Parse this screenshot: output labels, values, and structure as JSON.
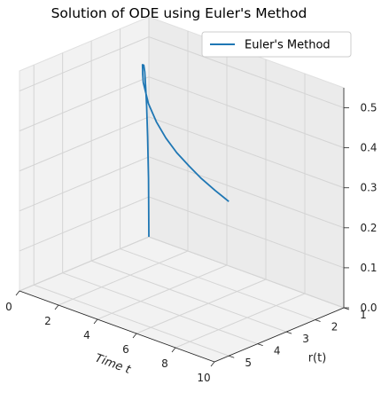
{
  "chart_data": {
    "type": "line",
    "projection": "3d",
    "title": "Solution of ODE using Euler's Method",
    "xlabel": "Time t",
    "ylabel": "r(t)",
    "zlabel": "",
    "xlim": [
      0,
      10
    ],
    "ylim": [
      1,
      5.5
    ],
    "zlim": [
      0,
      0.55
    ],
    "x_ticks": [
      "0",
      "2",
      "4",
      "6",
      "8",
      "10"
    ],
    "y_ticks": [
      "1",
      "2",
      "3",
      "4",
      "5"
    ],
    "z_ticks": [
      "0.0",
      "0.1",
      "0.2",
      "0.3",
      "0.4",
      "0.5"
    ],
    "grid": true,
    "legend": "top-right",
    "series": [
      {
        "name": "Euler's Method",
        "color": "#1f77b4",
        "t": [
          0,
          0.1,
          0.2,
          0.3,
          0.4,
          0.6,
          0.8,
          1.0,
          1.3,
          1.6,
          2.0,
          2.5,
          3.0,
          4.0,
          5.0,
          6.0,
          7.0,
          8.0,
          9.0,
          10.0
        ],
        "r": [
          1.0,
          1.08,
          1.18,
          1.28,
          1.38,
          1.55,
          1.72,
          1.9,
          2.1,
          2.3,
          2.55,
          2.8,
          3.05,
          3.45,
          3.8,
          4.1,
          4.35,
          4.6,
          4.8,
          5.0
        ],
        "z": [
          0.0,
          0.15,
          0.26,
          0.34,
          0.39,
          0.44,
          0.465,
          0.475,
          0.478,
          0.475,
          0.468,
          0.458,
          0.448,
          0.432,
          0.42,
          0.41,
          0.402,
          0.396,
          0.39,
          0.386
        ]
      }
    ]
  }
}
